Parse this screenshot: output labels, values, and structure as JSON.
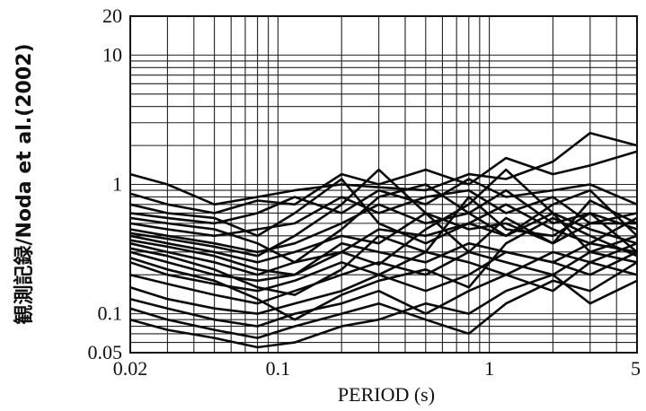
{
  "chart_data": {
    "type": "line",
    "title": "",
    "xlabel": "PERIOD (s)",
    "ylabel": "観測記録/Noda et al.(2002)",
    "xscale": "log",
    "yscale": "log",
    "xlim": [
      0.02,
      5
    ],
    "ylim": [
      0.05,
      20
    ],
    "grid": true,
    "legend": "none",
    "x_ticks": [
      {
        "value": 0.02,
        "label": "0.02"
      },
      {
        "value": 0.1,
        "label": "0.1"
      },
      {
        "value": 1,
        "label": "1"
      },
      {
        "value": 5,
        "label": "5"
      }
    ],
    "y_ticks": [
      {
        "value": 0.05,
        "label": "0.05"
      },
      {
        "value": 0.1,
        "label": "0.1"
      },
      {
        "value": 1,
        "label": "1"
      },
      {
        "value": 10,
        "label": "10"
      },
      {
        "value": 20,
        "label": "20"
      }
    ],
    "x": [
      0.02,
      0.03,
      0.05,
      0.08,
      0.12,
      0.2,
      0.3,
      0.5,
      0.8,
      1.2,
      2,
      3,
      5
    ],
    "series": [
      {
        "values": [
          1.2,
          1.0,
          0.7,
          0.8,
          0.9,
          1.0,
          0.95,
          0.9,
          1.2,
          1.1,
          1.5,
          2.5,
          2.0
        ]
      },
      {
        "values": [
          0.85,
          0.7,
          0.6,
          0.75,
          0.7,
          1.2,
          1.0,
          1.3,
          1.0,
          1.6,
          1.2,
          1.4,
          1.8
        ]
      },
      {
        "values": [
          0.6,
          0.55,
          0.5,
          0.6,
          0.8,
          0.6,
          0.9,
          0.7,
          1.1,
          0.8,
          0.9,
          1.0,
          0.7
        ]
      },
      {
        "values": [
          0.5,
          0.45,
          0.4,
          0.45,
          0.5,
          0.8,
          0.6,
          0.8,
          0.9,
          0.6,
          0.8,
          0.5,
          0.6
        ]
      },
      {
        "values": [
          0.45,
          0.4,
          0.35,
          0.3,
          0.35,
          0.5,
          0.7,
          0.5,
          0.6,
          0.9,
          0.5,
          0.6,
          0.45
        ]
      },
      {
        "values": [
          0.4,
          0.35,
          0.3,
          0.25,
          0.3,
          0.4,
          0.35,
          0.6,
          0.45,
          0.5,
          0.35,
          0.5,
          0.5
        ]
      },
      {
        "values": [
          0.35,
          0.3,
          0.25,
          0.2,
          0.25,
          0.3,
          0.45,
          0.4,
          0.5,
          0.4,
          0.6,
          0.3,
          0.4
        ]
      },
      {
        "values": [
          0.3,
          0.25,
          0.2,
          0.18,
          0.2,
          0.35,
          0.3,
          0.25,
          0.35,
          0.3,
          0.25,
          0.35,
          0.3
        ]
      },
      {
        "values": [
          0.25,
          0.2,
          0.17,
          0.15,
          0.18,
          0.25,
          0.2,
          0.3,
          0.25,
          0.2,
          0.3,
          0.25,
          0.35
        ]
      },
      {
        "values": [
          0.2,
          0.17,
          0.14,
          0.12,
          0.15,
          0.2,
          0.25,
          0.2,
          0.3,
          0.25,
          0.2,
          0.3,
          0.25
        ]
      },
      {
        "values": [
          0.16,
          0.13,
          0.11,
          0.1,
          0.12,
          0.15,
          0.2,
          0.15,
          0.2,
          0.3,
          0.25,
          0.2,
          0.3
        ]
      },
      {
        "values": [
          0.13,
          0.11,
          0.09,
          0.08,
          0.1,
          0.12,
          0.15,
          0.1,
          0.15,
          0.2,
          0.15,
          0.25,
          0.2
        ]
      },
      {
        "values": [
          0.11,
          0.09,
          0.075,
          0.065,
          0.08,
          0.1,
          0.12,
          0.09,
          0.07,
          0.12,
          0.18,
          0.15,
          0.25
        ]
      },
      {
        "values": [
          0.09,
          0.075,
          0.065,
          0.055,
          0.06,
          0.08,
          0.09,
          0.12,
          0.1,
          0.15,
          0.2,
          0.12,
          0.18
        ]
      },
      {
        "values": [
          0.7,
          0.6,
          0.55,
          0.4,
          0.6,
          1.1,
          0.5,
          0.35,
          0.5,
          0.7,
          0.45,
          0.35,
          0.55
        ]
      },
      {
        "values": [
          0.55,
          0.5,
          0.45,
          0.35,
          0.25,
          0.45,
          0.8,
          1.0,
          0.6,
          0.4,
          0.7,
          0.9,
          0.4
        ]
      },
      {
        "values": [
          0.32,
          0.28,
          0.22,
          0.16,
          0.14,
          0.22,
          0.4,
          0.3,
          0.8,
          0.45,
          0.4,
          0.6,
          0.3
        ]
      },
      {
        "values": [
          0.27,
          0.22,
          0.18,
          0.13,
          0.09,
          0.14,
          0.18,
          0.22,
          0.16,
          0.35,
          0.55,
          0.4,
          0.28
        ]
      },
      {
        "values": [
          0.42,
          0.38,
          0.33,
          0.28,
          0.4,
          0.7,
          1.3,
          0.6,
          0.3,
          0.55,
          0.35,
          0.75,
          0.5
        ]
      },
      {
        "values": [
          0.37,
          0.33,
          0.28,
          0.22,
          0.2,
          0.3,
          0.24,
          0.45,
          0.7,
          1.3,
          0.6,
          0.45,
          0.35
        ]
      }
    ]
  }
}
